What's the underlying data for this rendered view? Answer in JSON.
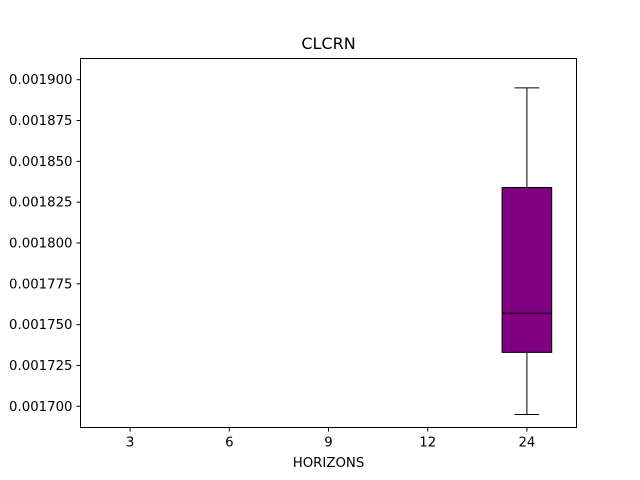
{
  "chart_data": {
    "type": "box",
    "title": "CLCRN",
    "xlabel": "HORIZONS",
    "ylabel": "",
    "categories": [
      "3",
      "6",
      "9",
      "12",
      "24"
    ],
    "ylim": [
      0.001687,
      0.001913
    ],
    "yticks": [
      "0.001700",
      "0.001725",
      "0.001750",
      "0.001775",
      "0.001800",
      "0.001825",
      "0.001850",
      "0.001875",
      "0.001900"
    ],
    "box_color": "#800080",
    "boxes": [
      {
        "category": "24",
        "whisker_low": 0.001695,
        "q1": 0.001733,
        "median": 0.001757,
        "q3": 0.001834,
        "whisker_high": 0.001895
      }
    ]
  }
}
